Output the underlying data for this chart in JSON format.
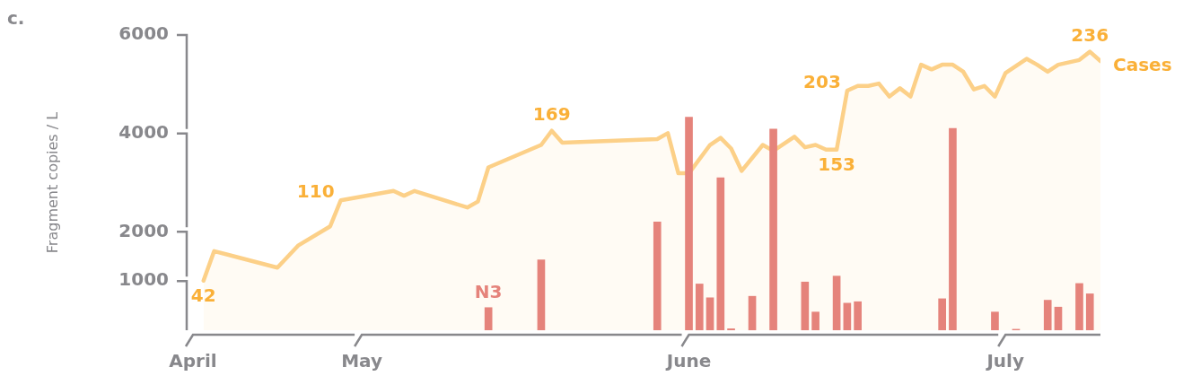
{
  "chart_data": {
    "type": "bar",
    "title": "c.",
    "ylabel": "Fragment copies / L",
    "xlim": [
      "--04-15",
      "--07-10"
    ],
    "xticks": [
      {
        "value": "--04-15",
        "label": "April"
      },
      {
        "value": "--05-01",
        "label": "May"
      },
      {
        "value": "--06-01",
        "label": "June"
      },
      {
        "value": "--07-01",
        "label": "July"
      }
    ],
    "ylim": [
      0,
      6000
    ],
    "yticks": [
      1000,
      2000,
      4000,
      6000
    ],
    "series": [
      {
        "name": "N3",
        "color": "#e5837b",
        "x": [
          "--05-13",
          "--05-18",
          "--05-29",
          "--06-01",
          "--06-02",
          "--06-03",
          "--06-04",
          "--06-05",
          "--06-07",
          "--06-09",
          "--06-12",
          "--06-13",
          "--06-15",
          "--06-16",
          "--06-17",
          "--06-25",
          "--06-26",
          "--06-30",
          "--07-02",
          "--07-05",
          "--07-06",
          "--07-08",
          "--07-09"
        ],
        "values": [
          460,
          1430,
          2200,
          4330,
          940,
          660,
          3100,
          30,
          690,
          4090,
          980,
          370,
          1100,
          550,
          580,
          640,
          4100,
          370,
          20,
          610,
          470,
          950,
          740
        ]
      },
      {
        "name": "Cases",
        "type": "area",
        "axis": "y2",
        "color": "#fcd088",
        "x": [
          "--04-16",
          "--04-17",
          "--04-23",
          "--04-25",
          "--04-28",
          "--04-29",
          "--05-04",
          "--05-05",
          "--05-06",
          "--05-11",
          "--05-12",
          "--05-13",
          "--05-18",
          "--05-19",
          "--05-20",
          "--05-29",
          "--05-30",
          "--05-31",
          "--06-01",
          "--06-03",
          "--06-04",
          "--06-05",
          "--06-06",
          "--06-08",
          "--06-09",
          "--06-11",
          "--06-12",
          "--06-13",
          "--06-14",
          "--06-15",
          "--06-16",
          "--06-17",
          "--06-18",
          "--06-19",
          "--06-20",
          "--06-21",
          "--06-22",
          "--06-23",
          "--06-24",
          "--06-25",
          "--06-26",
          "--06-27",
          "--06-28",
          "--06-29",
          "--06-30",
          "--07-01",
          "--07-03",
          "--07-04",
          "--07-05",
          "--07-06",
          "--07-08",
          "--07-09",
          "--07-10"
        ],
        "values": [
          42,
          67,
          53,
          72,
          88,
          110,
          118,
          114,
          118,
          104,
          109,
          138,
          157,
          169,
          159,
          162,
          167,
          133,
          133,
          157,
          163,
          154,
          135,
          157,
          152,
          164,
          155,
          157,
          153,
          153,
          203,
          207,
          207,
          209,
          198,
          205,
          198,
          225,
          221,
          225,
          225,
          219,
          204,
          207,
          198,
          218,
          230,
          225,
          219,
          225,
          229,
          236,
          228
        ],
        "value_labels": [
          "42",
          null,
          null,
          null,
          null,
          "110",
          null,
          null,
          null,
          null,
          null,
          null,
          null,
          "169",
          null,
          null,
          null,
          null,
          null,
          null,
          null,
          null,
          null,
          null,
          null,
          null,
          null,
          null,
          null,
          "153",
          "203",
          null,
          null,
          null,
          null,
          null,
          null,
          null,
          null,
          null,
          null,
          null,
          null,
          null,
          null,
          null,
          null,
          null,
          null,
          null,
          null,
          "236",
          null
        ]
      }
    ]
  }
}
